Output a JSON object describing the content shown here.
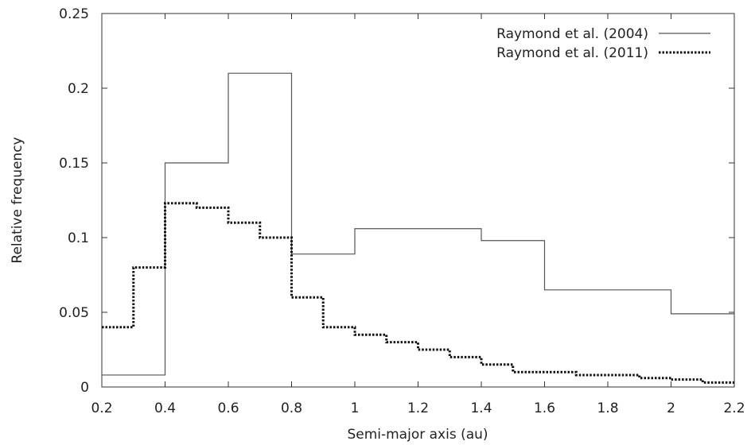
{
  "chart_data": {
    "type": "line",
    "subtype": "step-histogram",
    "title": "",
    "xlabel": "Semi-major axis (au)",
    "ylabel": "Relative frequency",
    "xlim": [
      0.2,
      2.2
    ],
    "ylim": [
      0,
      0.25
    ],
    "xticks": [
      0.2,
      0.4,
      0.6,
      0.8,
      1,
      1.2,
      1.4,
      1.6,
      1.8,
      2,
      2.2
    ],
    "xtick_labels": [
      "0.2",
      "0.4",
      "0.6",
      "0.8",
      "1",
      "1.2",
      "1.4",
      "1.6",
      "1.8",
      "2",
      "2.2"
    ],
    "yticks": [
      0,
      0.05,
      0.1,
      0.15,
      0.2,
      0.25
    ],
    "ytick_labels": [
      "0",
      "0.05",
      "0.1",
      "0.15",
      "0.2",
      "0.25"
    ],
    "grid": false,
    "legend_position": "top-right",
    "series": [
      {
        "name": "Raymond et al. (2004)",
        "style": "solid",
        "color": "#555555",
        "bin_edges": [
          0.2,
          0.4,
          0.6,
          0.8,
          1.0,
          1.4,
          1.6,
          2.0,
          2.2
        ],
        "values": [
          0.008,
          0.15,
          0.21,
          0.089,
          0.106,
          0.098,
          0.065,
          0.049
        ]
      },
      {
        "name": "Raymond et al. (2011)",
        "style": "dotted",
        "color": "#111111",
        "bin_edges": [
          0.2,
          0.3,
          0.4,
          0.5,
          0.6,
          0.7,
          0.8,
          0.9,
          1.0,
          1.1,
          1.2,
          1.3,
          1.4,
          1.5,
          1.6,
          1.7,
          1.8,
          1.9,
          2.0,
          2.1,
          2.2
        ],
        "values": [
          0.04,
          0.08,
          0.123,
          0.12,
          0.11,
          0.1,
          0.06,
          0.04,
          0.035,
          0.03,
          0.025,
          0.02,
          0.015,
          0.01,
          0.01,
          0.008,
          0.008,
          0.006,
          0.005,
          0.003
        ]
      }
    ]
  }
}
